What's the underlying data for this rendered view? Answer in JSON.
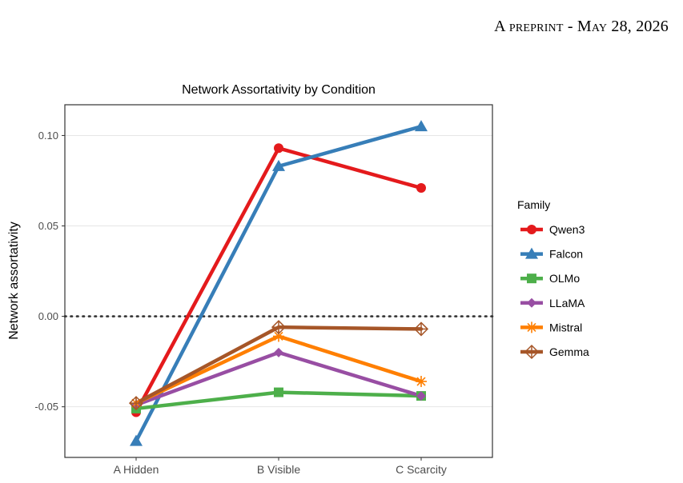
{
  "page_header": "A preprint - May 28, 2026",
  "chart_data": {
    "type": "line",
    "title": "Network Assortativity by Condition",
    "xlabel": "",
    "ylabel": "Network assortativity",
    "categories": [
      "A Hidden",
      "B Visible",
      "C Scarcity"
    ],
    "ylim": [
      -0.078,
      0.117
    ],
    "yticks": [
      -0.05,
      0.0,
      0.05,
      0.1
    ],
    "ytick_labels": [
      "-0.05",
      "0.00",
      "0.05",
      "0.10"
    ],
    "reference_line": 0.0,
    "grid": true,
    "legend_title": "Family",
    "legend_position": "right",
    "series": [
      {
        "name": "Qwen3",
        "color": "#e41a1c",
        "marker": "circle",
        "values": [
          -0.053,
          0.093,
          0.071
        ]
      },
      {
        "name": "Falcon",
        "color": "#377eb8",
        "marker": "triangle",
        "values": [
          -0.069,
          0.083,
          0.105
        ]
      },
      {
        "name": "OLMo",
        "color": "#4daf4a",
        "marker": "square",
        "values": [
          -0.051,
          -0.042,
          -0.044
        ]
      },
      {
        "name": "LLaMA",
        "color": "#984ea3",
        "marker": "diamond",
        "values": [
          -0.049,
          -0.02,
          -0.044
        ]
      },
      {
        "name": "Mistral",
        "color": "#ff7f00",
        "marker": "asterisk",
        "values": [
          -0.048,
          -0.011,
          -0.036
        ]
      },
      {
        "name": "Gemma",
        "color": "#a65628",
        "marker": "open-diamond-plus",
        "values": [
          -0.048,
          -0.006,
          -0.007
        ]
      }
    ]
  }
}
